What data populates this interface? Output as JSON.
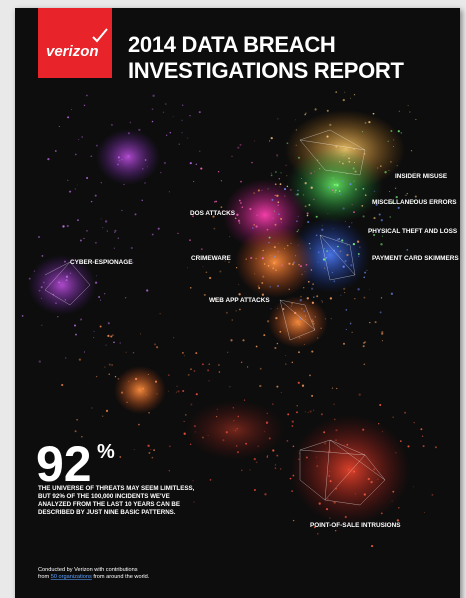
{
  "header": {
    "logo": "verizon",
    "title_lines": [
      "2014 DATA BREACH",
      "INVESTIGATIONS REPORT"
    ]
  },
  "patterns": [
    "INSIDER MISUSE",
    "MISCELLANEOUS ERRORS",
    "PHYSICAL THEFT AND LOSS",
    "PAYMENT CARD SKIMMERS",
    "DOS ATTACKS",
    "CRIMEWARE",
    "CYBER-ESPIONAGE",
    "WEB APP ATTACKS",
    "POINT-OF-SALE INTRUSIONS"
  ],
  "stat": {
    "value": "92",
    "unit": "%",
    "lines": [
      "THE UNIVERSE OF THREATS MAY SEEM LIMITLESS,",
      "BUT 92% OF THE 100,000 INCIDENTS WE'VE",
      "ANALYZED FROM THE LAST 10 YEARS CAN BE",
      "DESCRIBED BY JUST NINE BASIC PATTERNS."
    ]
  },
  "footer": {
    "line1": "Conducted by Verizon with contributions",
    "prefix": "from",
    "link": "50 organizations",
    "suffix": "from around the world."
  }
}
